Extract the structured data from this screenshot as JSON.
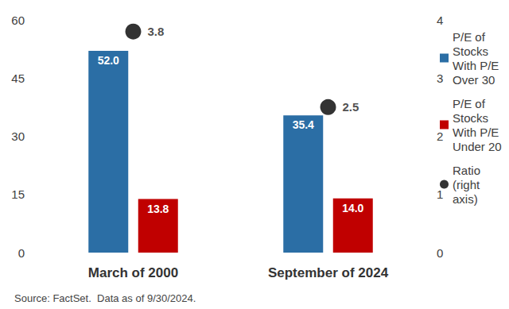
{
  "chart_data": {
    "type": "bar",
    "categories": [
      "March of 2000",
      "September of 2024"
    ],
    "series": [
      {
        "name": "P/E of Stocks With P/E Over 30",
        "type": "bar",
        "color": "#2b6ea5",
        "values": [
          52.0,
          35.4
        ],
        "value_labels": [
          "52.0",
          "35.4"
        ]
      },
      {
        "name": "P/E of Stocks With P/E Under 20",
        "type": "bar",
        "color": "#c00000",
        "values": [
          13.8,
          14.0
        ],
        "value_labels": [
          "13.8",
          "14.0"
        ]
      },
      {
        "name": "Ratio (right axis)",
        "type": "scatter",
        "axis": "y2",
        "color": "#000000",
        "marker": "circle",
        "values": [
          3.8,
          2.5
        ]
      }
    ],
    "ylim": [
      0,
      60
    ],
    "yticks": [
      0,
      15,
      30,
      45,
      60
    ],
    "y2lim": [
      0,
      4
    ],
    "y2ticks": [
      0,
      1,
      2,
      3,
      4
    ],
    "grid": false,
    "legend": "right",
    "data_labels": true,
    "source": "Source: FactSet.  Data as of 9/30/2024."
  }
}
